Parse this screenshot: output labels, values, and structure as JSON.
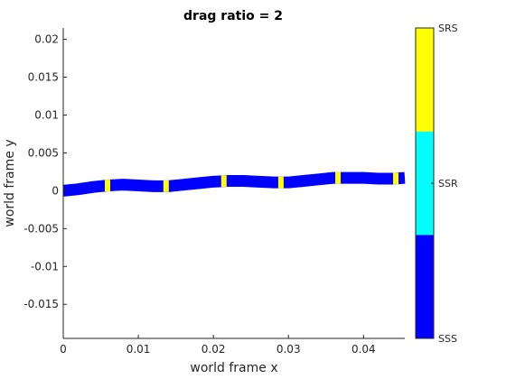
{
  "chart_data": {
    "type": "line",
    "title": "drag ratio = 2",
    "xlabel": "world frame x",
    "ylabel": "world frame y",
    "xlim": [
      0,
      0.0455
    ],
    "ylim": [
      -0.0195,
      0.0215
    ],
    "xticks": [
      {
        "value": 0,
        "label": "0"
      },
      {
        "value": 0.01,
        "label": "0.01"
      },
      {
        "value": 0.02,
        "label": "0.02"
      },
      {
        "value": 0.03,
        "label": "0.03"
      },
      {
        "value": 0.04,
        "label": "0.04"
      }
    ],
    "yticks": [
      {
        "value": 0.02,
        "label": "0.02"
      },
      {
        "value": 0.015,
        "label": "0.015"
      },
      {
        "value": 0.01,
        "label": "0.01"
      },
      {
        "value": 0.005,
        "label": "0.005"
      },
      {
        "value": 0,
        "label": "0"
      },
      {
        "value": -0.005,
        "label": "-0.005"
      },
      {
        "value": -0.01,
        "label": "-0.01"
      },
      {
        "value": -0.015,
        "label": "-0.015"
      }
    ],
    "grid": false,
    "colors": {
      "SSS": "#0000ff",
      "SSR": "#00ffff",
      "SRS": "#ffff00"
    },
    "path": {
      "x": [
        0,
        0.002,
        0.004,
        0.006,
        0.008,
        0.01,
        0.012,
        0.014,
        0.016,
        0.018,
        0.02,
        0.022,
        0.024,
        0.026,
        0.028,
        0.03,
        0.032,
        0.034,
        0.036,
        0.038,
        0.04,
        0.042,
        0.044,
        0.0455
      ],
      "y": [
        0.0,
        0.0002,
        0.0005,
        0.0007,
        0.0008,
        0.0007,
        0.0006,
        0.0006,
        0.0008,
        0.001,
        0.0012,
        0.0013,
        0.0013,
        0.0012,
        0.0011,
        0.0011,
        0.0013,
        0.0015,
        0.0017,
        0.0017,
        0.0017,
        0.0016,
        0.0016,
        0.0017
      ]
    },
    "state_markers": [
      {
        "x": 0.0059,
        "state": "SRS"
      },
      {
        "x": 0.0137,
        "state": "SRS"
      },
      {
        "x": 0.0214,
        "state": "SRS"
      },
      {
        "x": 0.029,
        "state": "SRS"
      },
      {
        "x": 0.0366,
        "state": "SRS"
      },
      {
        "x": 0.0443,
        "state": "SRS"
      }
    ],
    "colorbar": {
      "categories": [
        "SSS",
        "SSR",
        "SRS"
      ],
      "labels": [
        "SSS",
        "SSR",
        "SRS"
      ]
    }
  }
}
